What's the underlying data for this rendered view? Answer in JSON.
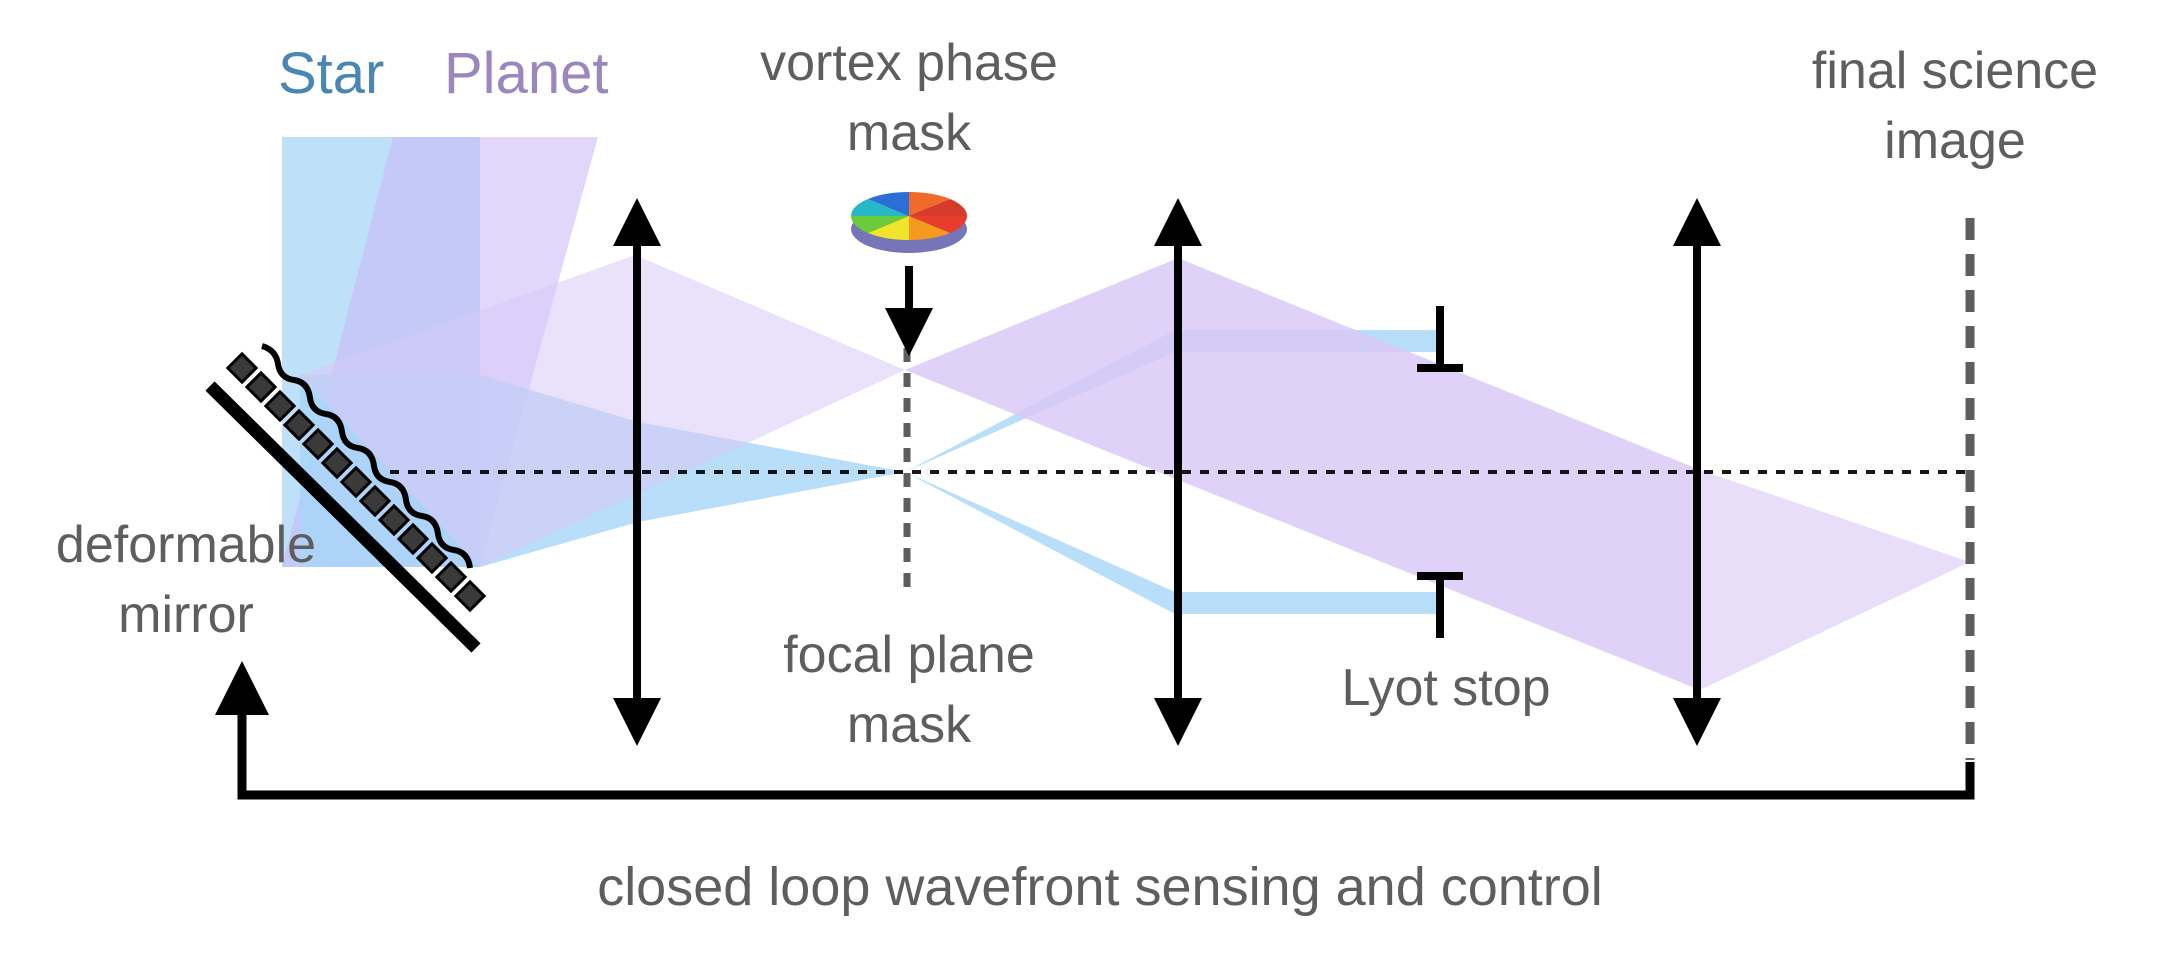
{
  "legend": {
    "star": "Star",
    "planet": "Planet"
  },
  "labels": {
    "vortex_line1": "vortex phase",
    "vortex_line2": "mask",
    "final_line1": "final science",
    "final_line2": "image",
    "dm_line1": "deformable",
    "dm_line2": "mirror",
    "fpm_line1": "focal plane",
    "fpm_line2": "mask",
    "lyot": "Lyot stop",
    "loop": "closed loop wavefront sensing and control"
  },
  "colors": {
    "star": "#4a86b4",
    "planet": "#9b86bd",
    "star_beam": "#a8d6f7",
    "planet_beam": "#d9c8f7",
    "text": "#5e5e5e",
    "line": "#000000"
  }
}
